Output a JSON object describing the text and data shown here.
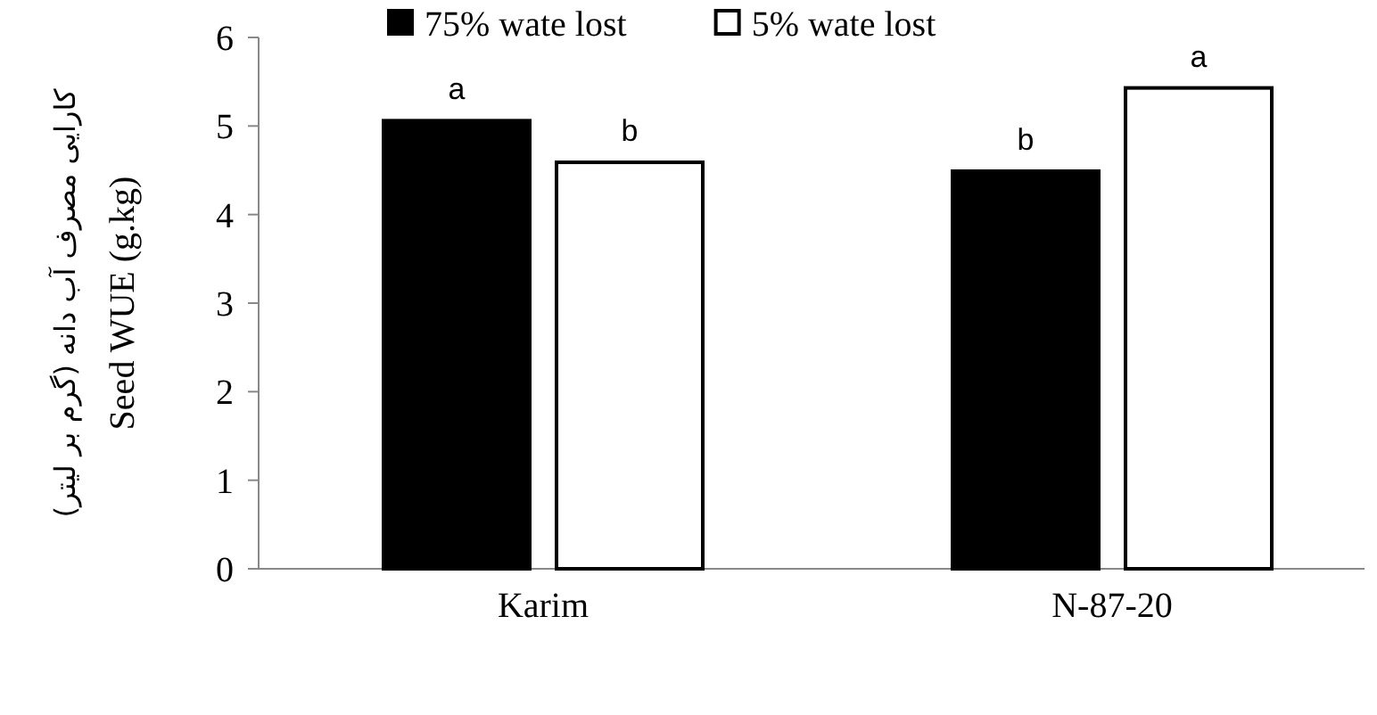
{
  "chart_data": {
    "type": "bar",
    "ylabel": "Seed WUE (g.kg)",
    "annotations": [
      "کارایی مصرف آب دانه (گرم بر لیتر)"
    ],
    "categories": [
      "Karim",
      "N-87-20"
    ],
    "series": [
      {
        "name": "75% wate lost",
        "color": "#000000",
        "values": [
          5.06,
          4.49
        ],
        "value_labels": [
          "a",
          "b"
        ]
      },
      {
        "name": "5% wate lost",
        "color": "#ffffff",
        "values": [
          4.59,
          5.43
        ],
        "value_labels": [
          "b",
          "a"
        ]
      }
    ],
    "ylim": [
      0,
      6
    ],
    "yticks": [
      0,
      1,
      2,
      3,
      4,
      5,
      6
    ],
    "grid": false,
    "legend": "top"
  }
}
